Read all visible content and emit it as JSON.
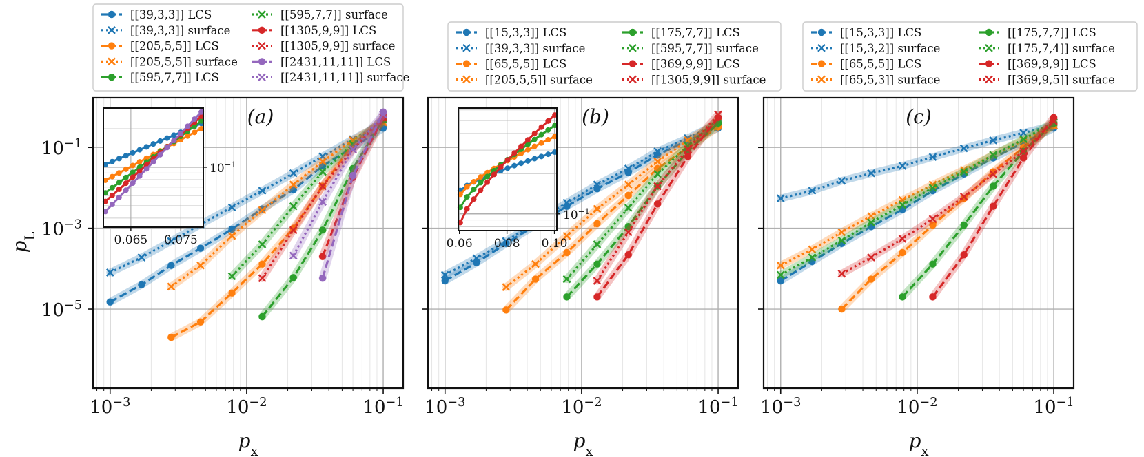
{
  "colors": {
    "blue": "#1f77b4",
    "orange": "#ff7f0e",
    "green": "#2ca02c",
    "red": "#d62728",
    "purple": "#9467bd",
    "grid": "#b0b0b0",
    "minor_grid": "#e6e6e6"
  },
  "figure": {
    "xlabel": "p",
    "xlabel_sub": "x",
    "ylabel": "p",
    "ylabel_sub": "L"
  },
  "chart_data": [
    {
      "type": "line",
      "panel_label": "(a)",
      "xscale": "log",
      "yscale": "log",
      "xlim": [
        0.00075,
        0.14
      ],
      "ylim": [
        1.1e-07,
        1.7
      ],
      "x_ticks": [
        {
          "v": 0.001,
          "label": "10",
          "exp": "−3"
        },
        {
          "v": 0.01,
          "label": "10",
          "exp": "−2"
        },
        {
          "v": 0.1,
          "label": "10",
          "exp": "−1"
        }
      ],
      "y_ticks": [
        {
          "v": 0.1,
          "label": "10",
          "exp": "−1"
        },
        {
          "v": 0.001,
          "label": "10",
          "exp": "−3"
        },
        {
          "v": 1e-05,
          "label": "10",
          "exp": "−5"
        }
      ],
      "grid": true,
      "legend_placement": "above",
      "legend_columns": 2,
      "series": [
        {
          "name": "[[39,3,3]] LCS",
          "color": "blue",
          "style": "dashed",
          "marker": "circle",
          "x": [
            0.001,
            0.0017,
            0.0028,
            0.0046,
            0.0078,
            0.013,
            0.022,
            0.036,
            0.06,
            0.1
          ],
          "y": [
            1.5e-05,
            4e-05,
            0.00012,
            0.00032,
            0.00095,
            0.003,
            0.009,
            0.035,
            0.1,
            0.3
          ]
        },
        {
          "name": "[[39,3,3]] surface",
          "color": "blue",
          "style": "dotted",
          "marker": "x",
          "x": [
            0.001,
            0.0017,
            0.0028,
            0.0046,
            0.0078,
            0.013,
            0.022,
            0.036,
            0.06,
            0.1
          ],
          "y": [
            8e-05,
            0.00019,
            0.00048,
            0.00125,
            0.0033,
            0.0085,
            0.023,
            0.06,
            0.16,
            0.4
          ]
        },
        {
          "name": "[[205,5,5]] LCS",
          "color": "orange",
          "style": "dashed",
          "marker": "circle",
          "x": [
            0.0028,
            0.0046,
            0.0078,
            0.013,
            0.022,
            0.036,
            0.06,
            0.1
          ],
          "y": [
            2e-06,
            4.8e-06,
            2.5e-05,
            0.00013,
            0.001,
            0.011,
            0.12,
            0.45
          ]
        },
        {
          "name": "[[205,5,5]] surface",
          "color": "orange",
          "style": "dotted",
          "marker": "x",
          "x": [
            0.0028,
            0.0046,
            0.0078,
            0.013,
            0.022,
            0.036,
            0.06,
            0.1
          ],
          "y": [
            3.6e-05,
            0.00012,
            0.00065,
            0.0028,
            0.012,
            0.045,
            0.15,
            0.42
          ]
        },
        {
          "name": "[[595,7,7]] LCS",
          "color": "green",
          "style": "dashed",
          "marker": "circle",
          "x": [
            0.013,
            0.022,
            0.036,
            0.06,
            0.1
          ],
          "y": [
            6.5e-06,
            6e-05,
            0.0009,
            0.03,
            0.5
          ]
        },
        {
          "name": "[[595,7,7]] surface",
          "color": "green",
          "style": "dotted",
          "marker": "x",
          "x": [
            0.0078,
            0.013,
            0.022,
            0.036,
            0.06,
            0.1
          ],
          "y": [
            6.5e-05,
            0.0004,
            0.0035,
            0.025,
            0.12,
            0.5
          ]
        },
        {
          "name": "[[1305,9,9]] LCS",
          "color": "red",
          "style": "dashed",
          "marker": "circle",
          "x": [
            0.036,
            0.06,
            0.1
          ],
          "y": [
            0.0002,
            0.018,
            0.55
          ]
        },
        {
          "name": "[[1305,9,9]] surface",
          "color": "red",
          "style": "dotted",
          "marker": "x",
          "x": [
            0.013,
            0.022,
            0.036,
            0.06,
            0.1
          ],
          "y": [
            5.8e-05,
            0.0009,
            0.011,
            0.09,
            0.55
          ]
        },
        {
          "name": "[[2431,11,11]] LCS",
          "color": "purple",
          "style": "dashed",
          "marker": "circle",
          "x": [
            0.036,
            0.06,
            0.1
          ],
          "y": [
            5.8e-05,
            0.02,
            0.75
          ]
        },
        {
          "name": "[[2431,11,11]] surface",
          "color": "purple",
          "style": "dotted",
          "marker": "x",
          "x": [
            0.022,
            0.036,
            0.06,
            0.1
          ],
          "y": [
            0.00021,
            0.0045,
            0.09,
            0.65
          ]
        }
      ],
      "inset": {
        "xlim": [
          0.0595,
          0.0795
        ],
        "ylim": [
          0.034,
          0.29
        ],
        "x_ticks": [
          {
            "v": 0.065,
            "label": "0.065"
          },
          {
            "v": 0.075,
            "label": "0.075"
          }
        ],
        "y_ticks": [
          {
            "v": 0.1,
            "label": "10",
            "exp": "−1"
          }
        ],
        "series": [
          {
            "color": "blue",
            "y0": 0.105,
            "y1": 0.22
          },
          {
            "color": "orange",
            "y0": 0.079,
            "y1": 0.2
          },
          {
            "color": "green",
            "y0": 0.063,
            "y1": 0.23
          },
          {
            "color": "red",
            "y0": 0.054,
            "y1": 0.25
          },
          {
            "color": "purple",
            "y0": 0.045,
            "y1": 0.27
          }
        ]
      }
    },
    {
      "type": "line",
      "panel_label": "(b)",
      "xscale": "log",
      "yscale": "log",
      "xlim": [
        0.00075,
        0.14
      ],
      "ylim": [
        1.1e-07,
        1.7
      ],
      "x_ticks": [
        {
          "v": 0.001,
          "label": "10",
          "exp": "−3"
        },
        {
          "v": 0.01,
          "label": "10",
          "exp": "−2"
        },
        {
          "v": 0.1,
          "label": "10",
          "exp": "−1"
        }
      ],
      "y_ticks": [],
      "grid": true,
      "legend_placement": "above",
      "legend_columns": 2,
      "series": [
        {
          "name": "[[15,3,3]] LCS",
          "color": "blue",
          "style": "dashed",
          "marker": "circle",
          "x": [
            0.001,
            0.0017,
            0.0028,
            0.0046,
            0.0078,
            0.013,
            0.022,
            0.036,
            0.06,
            0.1
          ],
          "y": [
            5e-05,
            0.00014,
            0.00042,
            0.0012,
            0.0035,
            0.0095,
            0.024,
            0.065,
            0.15,
            0.3
          ]
        },
        {
          "name": "[[39,3,3]] surface",
          "color": "blue",
          "style": "dotted",
          "marker": "x",
          "x": [
            0.001,
            0.0017,
            0.0028,
            0.0046,
            0.0078,
            0.013,
            0.022,
            0.036,
            0.06,
            0.1
          ],
          "y": [
            7e-05,
            0.00018,
            0.00048,
            0.0014,
            0.0043,
            0.012,
            0.03,
            0.08,
            0.17,
            0.4
          ]
        },
        {
          "name": "[[65,5,5]] LCS",
          "color": "orange",
          "style": "dashed",
          "marker": "circle",
          "x": [
            0.0028,
            0.0046,
            0.0078,
            0.013,
            0.022,
            0.036,
            0.06,
            0.1
          ],
          "y": [
            9.5e-06,
            5.5e-05,
            0.00025,
            0.0013,
            0.0065,
            0.03,
            0.1,
            0.32
          ]
        },
        {
          "name": "[[205,5,5]] surface",
          "color": "orange",
          "style": "dotted",
          "marker": "x",
          "x": [
            0.0028,
            0.0046,
            0.0078,
            0.013,
            0.022,
            0.036,
            0.06,
            0.1
          ],
          "y": [
            3.5e-05,
            0.00013,
            0.00065,
            0.003,
            0.012,
            0.045,
            0.15,
            0.42
          ]
        },
        {
          "name": "[[175,7,7]] LCS",
          "color": "green",
          "style": "dashed",
          "marker": "circle",
          "x": [
            0.0078,
            0.013,
            0.022,
            0.036,
            0.06,
            0.1
          ],
          "y": [
            2e-05,
            0.00013,
            0.0011,
            0.011,
            0.08,
            0.4
          ]
        },
        {
          "name": "[[595,7,7]] surface",
          "color": "green",
          "style": "dotted",
          "marker": "x",
          "x": [
            0.0078,
            0.013,
            0.022,
            0.036,
            0.06,
            0.1
          ],
          "y": [
            5.5e-05,
            0.0004,
            0.0032,
            0.022,
            0.11,
            0.5
          ]
        },
        {
          "name": "[[369,9,9]] LCS",
          "color": "red",
          "style": "dashed",
          "marker": "circle",
          "x": [
            0.013,
            0.022,
            0.036,
            0.06,
            0.1
          ],
          "y": [
            2e-05,
            0.00022,
            0.004,
            0.06,
            0.55
          ]
        },
        {
          "name": "[[1305,9,9]] surface",
          "color": "red",
          "style": "dotted",
          "marker": "x",
          "x": [
            0.013,
            0.022,
            0.036,
            0.06,
            0.1
          ],
          "y": [
            5e-05,
            0.0008,
            0.011,
            0.09,
            0.65
          ]
        }
      ],
      "inset": {
        "xlim": [
          0.0595,
          0.101
        ],
        "ylim": [
          0.075,
          0.62
        ],
        "x_ticks": [
          {
            "v": 0.06,
            "label": "0.06"
          },
          {
            "v": 0.08,
            "label": "0.08"
          },
          {
            "v": 0.1,
            "label": "0.10"
          }
        ],
        "y_ticks": [
          {
            "v": 0.1,
            "label": "10",
            "exp": "−1"
          }
        ],
        "series": [
          {
            "color": "blue",
            "y0": 0.15,
            "y1": 0.29
          },
          {
            "color": "orange",
            "y0": 0.14,
            "y1": 0.38
          },
          {
            "color": "green",
            "y0": 0.112,
            "y1": 0.46
          },
          {
            "color": "red",
            "y0": 0.086,
            "y1": 0.55
          }
        ]
      }
    },
    {
      "type": "line",
      "panel_label": "(c)",
      "xscale": "log",
      "yscale": "log",
      "xlim": [
        0.00075,
        0.14
      ],
      "ylim": [
        1.1e-07,
        1.7
      ],
      "x_ticks": [
        {
          "v": 0.001,
          "label": "10",
          "exp": "−3"
        },
        {
          "v": 0.01,
          "label": "10",
          "exp": "−2"
        },
        {
          "v": 0.1,
          "label": "10",
          "exp": "−1"
        }
      ],
      "y_ticks": [],
      "grid": true,
      "legend_placement": "above",
      "legend_columns": 2,
      "series": [
        {
          "name": "[[15,3,3]] LCS",
          "color": "blue",
          "style": "dashed",
          "marker": "circle",
          "x": [
            0.001,
            0.0017,
            0.0028,
            0.0046,
            0.0078,
            0.013,
            0.022,
            0.036,
            0.06,
            0.1
          ],
          "y": [
            5e-05,
            0.00015,
            0.00042,
            0.0011,
            0.0029,
            0.0085,
            0.022,
            0.055,
            0.13,
            0.3
          ]
        },
        {
          "name": "[[15,3,2]] surface",
          "color": "blue",
          "style": "dotted",
          "marker": "x",
          "x": [
            0.001,
            0.0017,
            0.0028,
            0.0046,
            0.0078,
            0.013,
            0.022,
            0.036,
            0.06,
            0.1
          ],
          "y": [
            0.0055,
            0.0085,
            0.015,
            0.023,
            0.035,
            0.058,
            0.095,
            0.15,
            0.23,
            0.35
          ]
        },
        {
          "name": "[[65,5,5]] LCS",
          "color": "orange",
          "style": "dashed",
          "marker": "circle",
          "x": [
            0.0028,
            0.0046,
            0.0078,
            0.013,
            0.022,
            0.036,
            0.06,
            0.1
          ],
          "y": [
            1e-05,
            5.5e-05,
            0.00025,
            0.0012,
            0.0055,
            0.025,
            0.1,
            0.35
          ]
        },
        {
          "name": "[[65,5,3]] surface",
          "color": "orange",
          "style": "dotted",
          "marker": "x",
          "x": [
            0.001,
            0.0017,
            0.0028,
            0.0046,
            0.0078,
            0.013,
            0.022,
            0.036,
            0.06,
            0.1
          ],
          "y": [
            0.00012,
            0.0003,
            0.0008,
            0.002,
            0.005,
            0.012,
            0.028,
            0.065,
            0.15,
            0.35
          ]
        },
        {
          "name": "[[175,7,7]] LCS",
          "color": "green",
          "style": "dashed",
          "marker": "circle",
          "x": [
            0.0078,
            0.013,
            0.022,
            0.036,
            0.06,
            0.1
          ],
          "y": [
            2e-05,
            0.00013,
            0.0012,
            0.011,
            0.08,
            0.4
          ]
        },
        {
          "name": "[[175,7,4]] surface",
          "color": "green",
          "style": "dotted",
          "marker": "x",
          "x": [
            0.001,
            0.0017,
            0.0028,
            0.0046,
            0.0078,
            0.013,
            0.022,
            0.036,
            0.06,
            0.1
          ],
          "y": [
            7e-05,
            0.00019,
            0.0005,
            0.0014,
            0.0038,
            0.01,
            0.025,
            0.065,
            0.16,
            0.42
          ]
        },
        {
          "name": "[[369,9,9]] LCS",
          "color": "red",
          "style": "dashed",
          "marker": "circle",
          "x": [
            0.013,
            0.022,
            0.036,
            0.06,
            0.1
          ],
          "y": [
            2e-05,
            0.00022,
            0.0035,
            0.055,
            0.55
          ]
        },
        {
          "name": "[[369,9,5]] surface",
          "color": "red",
          "style": "dotted",
          "marker": "x",
          "x": [
            0.0028,
            0.0046,
            0.0078,
            0.013,
            0.022,
            0.036,
            0.06,
            0.1
          ],
          "y": [
            7.5e-05,
            0.00019,
            0.00055,
            0.0017,
            0.006,
            0.022,
            0.08,
            0.45
          ]
        }
      ]
    }
  ]
}
